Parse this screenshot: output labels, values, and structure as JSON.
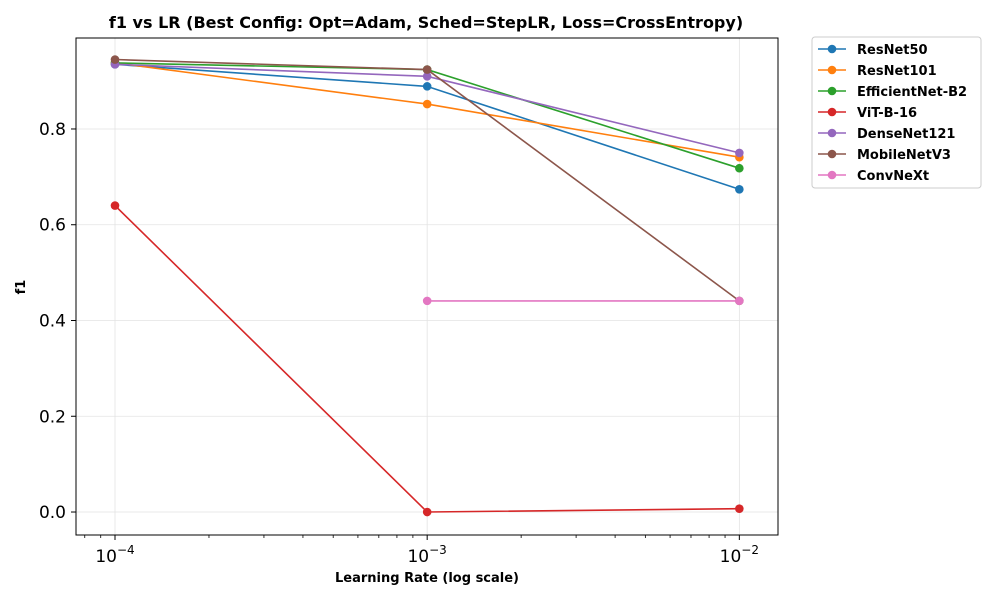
{
  "chart_data": {
    "type": "line",
    "title": "f1 vs LR (Best Config: Opt=Adam, Sched=StepLR, Loss=CrossEntropy)",
    "xlabel": "Learning Rate (log scale)",
    "ylabel": "f1",
    "x_scale": "log",
    "xlim": [
      7.5e-05,
      0.0133
    ],
    "ylim": [
      -0.048,
      0.99
    ],
    "grid": true,
    "legend_position": "outside-top-right",
    "x_ticks": [
      {
        "value": 0.0001,
        "base": "10",
        "exp": "−4"
      },
      {
        "value": 0.001,
        "base": "10",
        "exp": "−3"
      },
      {
        "value": 0.01,
        "base": "10",
        "exp": "−2"
      }
    ],
    "y_ticks": [
      {
        "value": 0.0,
        "label": "0.0"
      },
      {
        "value": 0.2,
        "label": "0.2"
      },
      {
        "value": 0.4,
        "label": "0.4"
      },
      {
        "value": 0.6,
        "label": "0.6"
      },
      {
        "value": 0.8,
        "label": "0.8"
      }
    ],
    "series": [
      {
        "name": "ResNet50",
        "color": "#1f77b4",
        "points": [
          [
            0.0001,
            0.935
          ],
          [
            0.001,
            0.889
          ],
          [
            0.01,
            0.674
          ]
        ]
      },
      {
        "name": "ResNet101",
        "color": "#ff7f0e",
        "points": [
          [
            0.0001,
            0.938
          ],
          [
            0.001,
            0.852
          ],
          [
            0.01,
            0.741
          ]
        ]
      },
      {
        "name": "EfficientNet-B2",
        "color": "#2ca02c",
        "points": [
          [
            0.0001,
            0.938
          ],
          [
            0.001,
            0.924
          ],
          [
            0.01,
            0.718
          ]
        ]
      },
      {
        "name": "ViT-B-16",
        "color": "#d62728",
        "points": [
          [
            0.0001,
            0.64
          ],
          [
            0.001,
            0.0
          ],
          [
            0.01,
            0.007
          ]
        ]
      },
      {
        "name": "DenseNet121",
        "color": "#9467bd",
        "points": [
          [
            0.0001,
            0.935
          ],
          [
            0.001,
            0.91
          ],
          [
            0.01,
            0.75
          ]
        ]
      },
      {
        "name": "MobileNetV3",
        "color": "#8c564b",
        "points": [
          [
            0.0001,
            0.945
          ],
          [
            0.001,
            0.924
          ],
          [
            0.01,
            0.441
          ]
        ]
      },
      {
        "name": "ConvNeXt",
        "color": "#e377c2",
        "points": [
          [
            0.001,
            0.441
          ],
          [
            0.01,
            0.441
          ]
        ]
      }
    ]
  }
}
